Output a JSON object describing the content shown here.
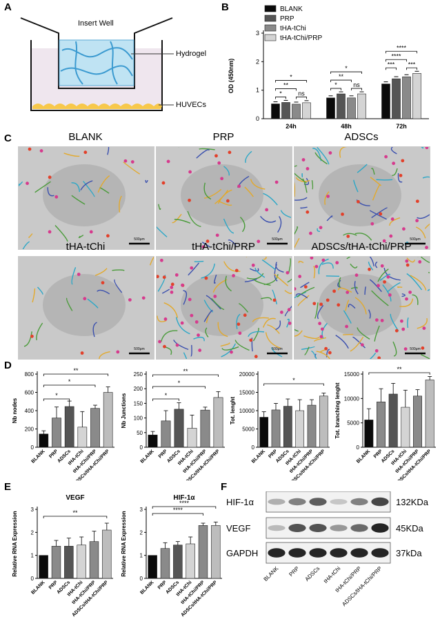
{
  "panels": {
    "A": "A",
    "B": "B",
    "C": "C",
    "D": "D",
    "E": "E",
    "F": "F"
  },
  "panel_a": {
    "insert_label": "Insert Well",
    "hydrogel_label": "Hydrogel",
    "cells_label": "HUVECs"
  },
  "micrographs": {
    "titles": [
      "BLANK",
      "PRP",
      "ADSCs",
      "tHA-tChi",
      "tHA-tChi/PRP",
      "ADSCs/tHA-tChi/PRP"
    ],
    "scale": "500μm"
  },
  "colors": {
    "black": "#0a0a0a",
    "dark_gray": "#555555",
    "mid_gray": "#8a8a8a",
    "light_gray": "#d4d4d4",
    "lighter": "#bdbdbd"
  },
  "chart_data": [
    {
      "id": "B",
      "type": "bar",
      "ylabel": "OD (450nm)",
      "ylim": [
        0,
        3
      ],
      "yticks": [
        0,
        1,
        2,
        3
      ],
      "categories": [
        "24h",
        "48h",
        "72h"
      ],
      "series": [
        {
          "name": "BLANK",
          "values": [
            0.52,
            0.73,
            1.22
          ]
        },
        {
          "name": "PRP",
          "values": [
            0.57,
            0.87,
            1.4
          ]
        },
        {
          "name": "tHA-tChi",
          "values": [
            0.51,
            0.73,
            1.47
          ]
        },
        {
          "name": "tHA-tChi/PRP",
          "values": [
            0.56,
            0.87,
            1.59
          ]
        }
      ],
      "annotations": [
        "*",
        "ns",
        "**",
        "*",
        "*",
        "ns",
        "**",
        "*",
        "***",
        "***",
        "****",
        "****"
      ]
    },
    {
      "id": "D1",
      "type": "bar",
      "ylabel": "Nb nodes",
      "ylim": [
        0,
        800
      ],
      "yticks": [
        0,
        200,
        400,
        600,
        800
      ],
      "categories": [
        "BLANK",
        "PRP",
        "ADSCs",
        "tHA-tChi",
        "tHA-tChi/PRP",
        "ADSCs/tHA-tChi/PRP"
      ],
      "values": [
        145,
        320,
        445,
        220,
        425,
        600
      ],
      "annotations": [
        "*",
        "*",
        "**"
      ]
    },
    {
      "id": "D2",
      "type": "bar",
      "ylabel": "Nb Junctions",
      "ylim": [
        0,
        250
      ],
      "yticks": [
        0,
        50,
        100,
        150,
        200,
        250
      ],
      "categories": [
        "BLANK",
        "PRP",
        "ADSCs",
        "tHA-tChi",
        "tHA-tChi/PRP",
        "ADSCs/tHA-tChi/PRP"
      ],
      "values": [
        42,
        90,
        130,
        65,
        127,
        170
      ],
      "annotations": [
        "*",
        "*",
        "**"
      ]
    },
    {
      "id": "D3",
      "type": "bar",
      "ylabel": "Tot. lenght",
      "ylim": [
        0,
        20000
      ],
      "yticks": [
        0,
        5000,
        10000,
        15000,
        20000
      ],
      "categories": [
        "BLANK",
        "PRP",
        "ADSCs",
        "tHA-tChi",
        "tHA-tChi/PRP",
        "ADSCs/tHA-tChi/PRP"
      ],
      "values": [
        8200,
        10200,
        11200,
        10000,
        11500,
        14000
      ],
      "annotations": [
        "*"
      ]
    },
    {
      "id": "D4",
      "type": "bar",
      "ylabel": "Tot. branching lenght",
      "ylim": [
        0,
        15000
      ],
      "yticks": [
        0,
        5000,
        10000,
        15000
      ],
      "categories": [
        "BLANK",
        "PRP",
        "ADSCs",
        "tHA-tChi",
        "tHA-tChi/PRP",
        "ADSCs/tHA-tChi/PRP"
      ],
      "values": [
        5600,
        9300,
        10900,
        8200,
        10500,
        13800
      ],
      "annotations": [
        "**"
      ]
    },
    {
      "id": "E1",
      "type": "bar",
      "title": "VEGF",
      "ylabel": "Relative RNA Expression",
      "ylim": [
        0,
        3
      ],
      "yticks": [
        0,
        1,
        2,
        3
      ],
      "categories": [
        "BLANK",
        "PRP",
        "ADSCs",
        "tHA-tChi",
        "tHA-tChi/PRP",
        "ADSCs/tHA-tChi/PRP"
      ],
      "values": [
        1.0,
        1.4,
        1.4,
        1.45,
        1.6,
        2.1
      ],
      "annotations": [
        "**"
      ]
    },
    {
      "id": "E2",
      "type": "bar",
      "title": "HIF-1α",
      "ylabel": "Relative RNA Expression",
      "ylim": [
        0,
        3
      ],
      "yticks": [
        0,
        1,
        2,
        3
      ],
      "categories": [
        "BLANK",
        "PRP",
        "ADSCs",
        "tHA-tChi",
        "tHA-tChi/PRP",
        "ADSCs/tHA-tChi/PRP"
      ],
      "values": [
        1.0,
        1.3,
        1.45,
        1.5,
        2.3,
        2.3
      ],
      "annotations": [
        "****",
        "****"
      ]
    }
  ],
  "blot": {
    "rows": [
      {
        "name": "HIF-1α",
        "kda": "132KDa"
      },
      {
        "name": "VEGF",
        "kda": "45KDa"
      },
      {
        "name": "GAPDH",
        "kda": "37kDa"
      }
    ],
    "lanes": [
      "BLANK",
      "PRP",
      "ADSCs",
      "tHA-tChi",
      "tHA-tChi/PRP",
      "ADSCs/tHA-tChi/PRP"
    ],
    "intensity": [
      [
        0.35,
        0.55,
        0.7,
        0.25,
        0.55,
        0.8
      ],
      [
        0.3,
        0.75,
        0.75,
        0.45,
        0.65,
        0.95
      ],
      [
        0.95,
        0.95,
        0.95,
        0.95,
        0.95,
        0.95
      ]
    ]
  }
}
